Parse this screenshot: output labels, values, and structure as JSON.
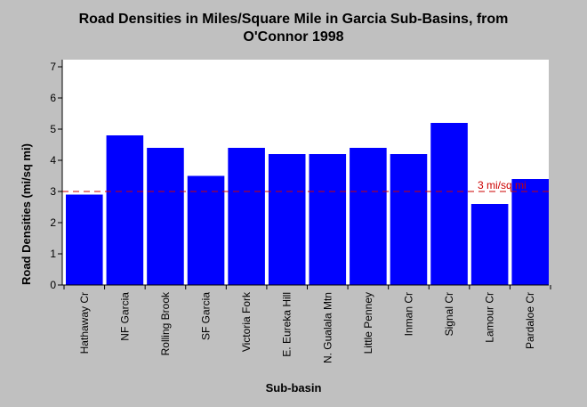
{
  "chart_data": {
    "type": "bar",
    "title_line1": "Road Densities in Miles/Square Mile in Garcia Sub-Basins, from",
    "title_line2": "O'Connor 1998",
    "xlabel": "Sub-basin",
    "ylabel": "Road Densities (mi/sq mi)",
    "categories": [
      "Hathaway Cr",
      "NF Garcia",
      "Rolling Brook",
      "SF Garcia",
      "Victoria Fork",
      "E. Eureka Hill",
      "N. Gualala Mtn",
      "Little Penney",
      "Inman Cr",
      "Signal Cr",
      "Lamour Cr",
      "Pardaloe Cr"
    ],
    "values": [
      2.9,
      4.8,
      4.4,
      3.5,
      4.4,
      4.2,
      4.2,
      4.4,
      4.2,
      5.2,
      2.6,
      3.4
    ],
    "ylim": [
      0,
      7
    ],
    "yticks": [
      0,
      1,
      2,
      3,
      4,
      5,
      6,
      7
    ],
    "reference_line": {
      "value": 3,
      "label": "3 mi/sq mi",
      "color": "#cc0000"
    },
    "bar_color": "#0000ff",
    "plot_background": "#ffffff",
    "background": "#c0c0c0",
    "grid": false
  }
}
